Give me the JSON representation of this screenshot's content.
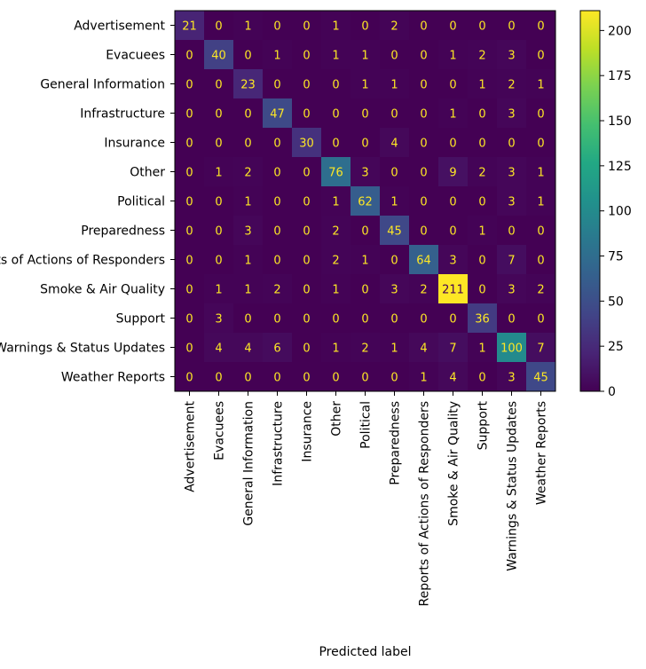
{
  "chart_data": {
    "type": "heatmap",
    "title": "",
    "xlabel": "Predicted label",
    "ylabel": "",
    "categories": [
      "Advertisement",
      "Evacuees",
      "General Information",
      "Infrastructure",
      "Insurance",
      "Other",
      "Political",
      "Preparedness",
      "Reports of Actions of Responders",
      "Smoke & Air Quality",
      "Support",
      "Warnings & Status Updates",
      "Weather Reports"
    ],
    "matrix": [
      [
        21,
        0,
        1,
        0,
        0,
        1,
        0,
        2,
        0,
        0,
        0,
        0,
        0
      ],
      [
        0,
        40,
        0,
        1,
        0,
        1,
        1,
        0,
        0,
        1,
        2,
        3,
        0
      ],
      [
        0,
        0,
        23,
        0,
        0,
        0,
        1,
        1,
        0,
        0,
        1,
        2,
        1
      ],
      [
        0,
        0,
        0,
        47,
        0,
        0,
        0,
        0,
        0,
        1,
        0,
        3,
        0
      ],
      [
        0,
        0,
        0,
        0,
        30,
        0,
        0,
        4,
        0,
        0,
        0,
        0,
        0
      ],
      [
        0,
        1,
        2,
        0,
        0,
        76,
        3,
        0,
        0,
        9,
        2,
        3,
        1
      ],
      [
        0,
        0,
        1,
        0,
        0,
        1,
        62,
        1,
        0,
        0,
        0,
        3,
        1
      ],
      [
        0,
        0,
        3,
        0,
        0,
        2,
        0,
        45,
        0,
        0,
        1,
        0,
        0
      ],
      [
        0,
        0,
        1,
        0,
        0,
        2,
        1,
        0,
        64,
        3,
        0,
        7,
        0
      ],
      [
        0,
        1,
        1,
        2,
        0,
        1,
        0,
        3,
        2,
        211,
        0,
        3,
        2
      ],
      [
        0,
        3,
        0,
        0,
        0,
        0,
        0,
        0,
        0,
        0,
        36,
        0,
        0
      ],
      [
        0,
        4,
        4,
        6,
        0,
        1,
        2,
        1,
        4,
        7,
        1,
        100,
        7
      ],
      [
        0,
        0,
        0,
        0,
        0,
        0,
        0,
        0,
        1,
        4,
        0,
        3,
        45
      ]
    ],
    "colorbar": {
      "colormap": "viridis",
      "range": [
        0,
        211
      ],
      "ticks": [
        0,
        25,
        50,
        75,
        100,
        125,
        150,
        175,
        200
      ]
    }
  }
}
